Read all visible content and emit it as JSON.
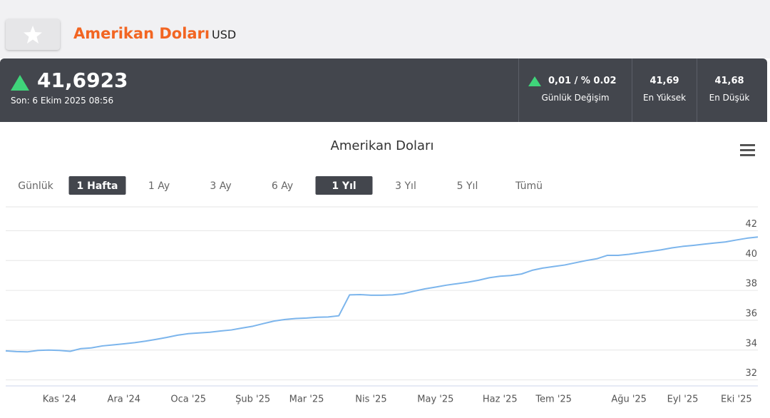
{
  "header": {
    "title": "Amerikan Doları",
    "code": "USD"
  },
  "quote": {
    "price": "41,6923",
    "last_update": "Son: 6 Ekim 2025 08:56",
    "change": "0,01 / % 0.02",
    "change_label": "Günlük Değişim",
    "high": "41,69",
    "high_label": "En Yüksek",
    "low": "41,68",
    "low_label": "En Düşük"
  },
  "range_buttons": [
    {
      "label": "Günlük",
      "selected": false
    },
    {
      "label": "1 Hafta",
      "selected": true
    },
    {
      "label": "1 Ay",
      "selected": false
    },
    {
      "label": "3 Ay",
      "selected": false
    },
    {
      "label": "6 Ay",
      "selected": false
    },
    {
      "label": "1 Yıl",
      "selected": true
    },
    {
      "label": "3 Yıl",
      "selected": false
    },
    {
      "label": "5 Yıl",
      "selected": false
    },
    {
      "label": "Tümü",
      "selected": false
    }
  ],
  "chart_data": {
    "type": "line",
    "title": "Amerikan Doları",
    "color": "#7cb5ec",
    "categories": [
      null,
      null,
      null,
      null,
      null,
      "Kas '24",
      null,
      null,
      null,
      null,
      null,
      "Ara '24",
      null,
      null,
      null,
      null,
      null,
      "Oca '25",
      null,
      null,
      null,
      null,
      null,
      "Şub '25",
      null,
      null,
      null,
      null,
      "Mar '25",
      null,
      null,
      null,
      null,
      null,
      "Nis '25",
      null,
      null,
      null,
      null,
      null,
      "May '25",
      null,
      null,
      null,
      null,
      null,
      "Haz '25",
      null,
      null,
      null,
      null,
      "Tem '25",
      null,
      null,
      null,
      null,
      null,
      null,
      "Ağu '25",
      null,
      null,
      null,
      null,
      "Eyl '25",
      null,
      null,
      null,
      null,
      "Eki '25",
      null,
      null
    ],
    "values": [
      33.95,
      33.9,
      33.88,
      33.98,
      34.0,
      33.98,
      33.92,
      34.1,
      34.15,
      34.28,
      34.35,
      34.42,
      34.5,
      34.6,
      34.72,
      34.85,
      35.0,
      35.1,
      35.15,
      35.2,
      35.28,
      35.35,
      35.48,
      35.6,
      35.78,
      35.95,
      36.05,
      36.12,
      36.15,
      36.2,
      36.22,
      36.3,
      37.7,
      37.72,
      37.68,
      37.68,
      37.7,
      37.78,
      37.95,
      38.1,
      38.22,
      38.35,
      38.45,
      38.55,
      38.68,
      38.85,
      38.95,
      39.0,
      39.1,
      39.35,
      39.5,
      39.6,
      39.7,
      39.85,
      40.0,
      40.12,
      40.35,
      40.35,
      40.42,
      40.52,
      40.62,
      40.72,
      40.85,
      40.95,
      41.02,
      41.1,
      41.18,
      41.25,
      41.38,
      41.5,
      41.58
    ],
    "ylim": [
      31.6,
      43.6
    ],
    "yticks": [
      32,
      34,
      36,
      38,
      40,
      42
    ],
    "grid": true
  }
}
